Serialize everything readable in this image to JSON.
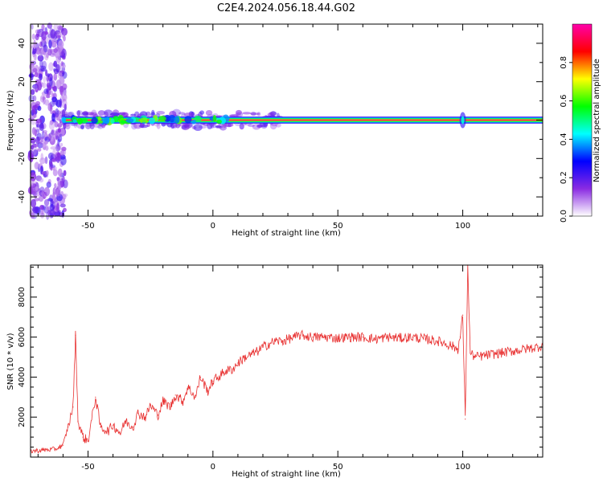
{
  "figure": {
    "title": "C2E4.2024.056.18.44.G02"
  },
  "chart_data": [
    {
      "type": "heatmap",
      "title": "",
      "xlabel": "Height of straight line (km)",
      "ylabel": "Frequency (Hz)",
      "xlim": [
        -73,
        132
      ],
      "ylim": [
        -50,
        50
      ],
      "xticks": [
        -50,
        0,
        50,
        100
      ],
      "yticks": [
        -40,
        -20,
        0,
        20,
        40
      ],
      "colorbar": {
        "label": "Normalized spectral amplitude",
        "range": [
          0,
          1
        ],
        "ticks": [
          0.0,
          0.2,
          0.4,
          0.6,
          0.8
        ],
        "colormap": [
          "#ffffff",
          "#8a2be2",
          "#0000ff",
          "#00ffff",
          "#00ff00",
          "#ffff00",
          "#ff0000",
          "#ff00aa"
        ]
      },
      "features": {
        "carrier_line": {
          "start_x": -60,
          "end_x": 132,
          "frequency_hz": 0,
          "amplitude": 0.95
        },
        "noise_region": {
          "x_range": [
            -73,
            -59
          ],
          "frequency_hz_range": [
            -50,
            50
          ],
          "amplitude": 0.3
        },
        "spike_x": 100
      }
    },
    {
      "type": "line",
      "title": "",
      "xlabel": "Height of straight line (km)",
      "ylabel": "SNR (10 * v/v)",
      "xlim": [
        -73,
        132
      ],
      "ylim": [
        0,
        9600
      ],
      "xticks": [
        -50,
        0,
        50,
        100
      ],
      "yticks": [
        2000,
        4000,
        6000,
        8000
      ],
      "series": [
        {
          "color": "#e83030",
          "x": [
            -73,
            -68,
            -63,
            -60,
            -58,
            -56,
            -55,
            -54,
            -52,
            -50,
            -47,
            -45,
            -42,
            -40,
            -37,
            -35,
            -32,
            -30,
            -27,
            -25,
            -22,
            -20,
            -17,
            -15,
            -12,
            -10,
            -7,
            -5,
            -2,
            0,
            3,
            5,
            8,
            10,
            13,
            15,
            18,
            20,
            23,
            25,
            28,
            30,
            33,
            35,
            40,
            45,
            50,
            55,
            60,
            65,
            70,
            75,
            80,
            85,
            90,
            95,
            98,
            99,
            100,
            101,
            102,
            103,
            105,
            110,
            115,
            120,
            125,
            130,
            132
          ],
          "y": [
            300,
            350,
            400,
            600,
            1500,
            2500,
            6100,
            1800,
            1000,
            800,
            3000,
            1500,
            1300,
            1600,
            1200,
            1800,
            1500,
            2200,
            2000,
            2600,
            2100,
            2800,
            2500,
            3100,
            2800,
            3500,
            3000,
            4000,
            3300,
            3800,
            4100,
            4300,
            4400,
            4700,
            5000,
            5100,
            5300,
            5500,
            5700,
            5800,
            5800,
            5900,
            6000,
            6100,
            6000,
            6000,
            5950,
            6000,
            6000,
            5900,
            6000,
            5950,
            6000,
            5900,
            5800,
            5600,
            5400,
            6000,
            7100,
            1900,
            9600,
            5200,
            5000,
            5100,
            5200,
            5300,
            5400,
            5500,
            5600
          ],
          "noise_amplitude": 250
        }
      ]
    }
  ]
}
